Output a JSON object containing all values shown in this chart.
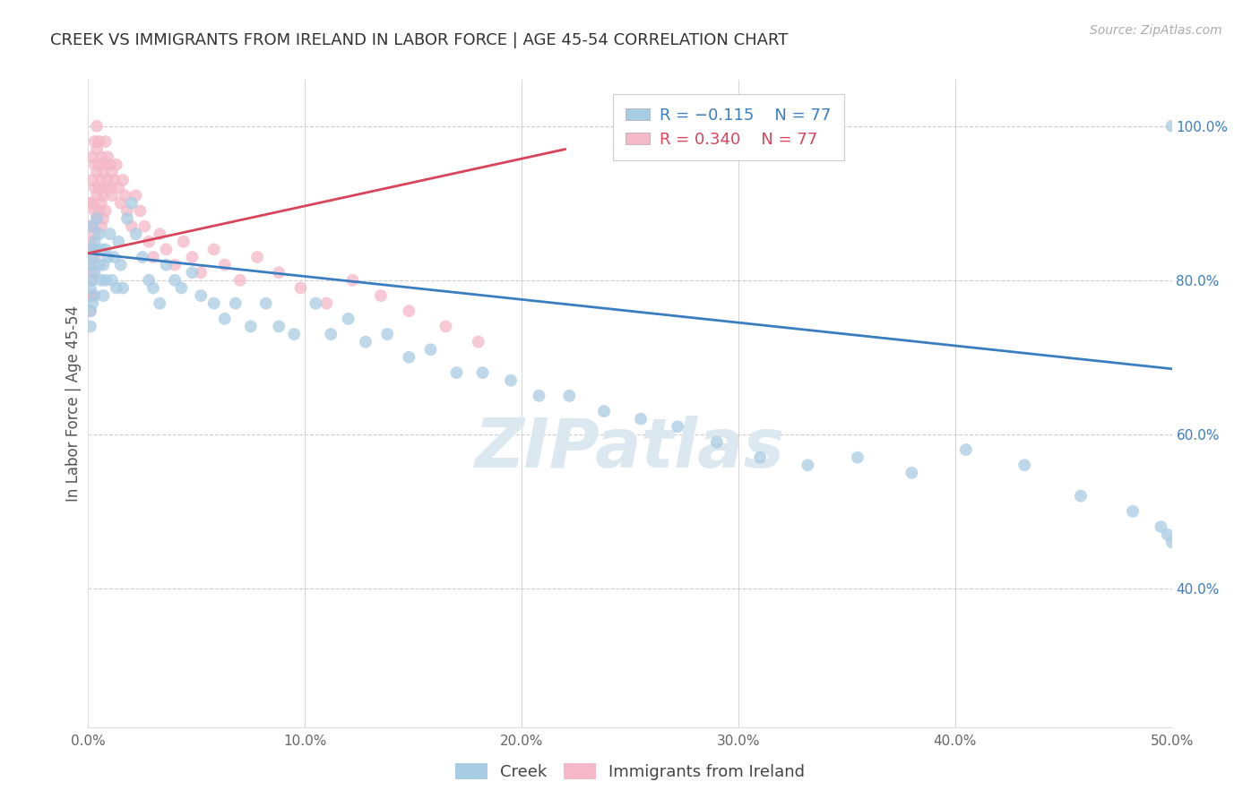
{
  "title": "CREEK VS IMMIGRANTS FROM IRELAND IN LABOR FORCE | AGE 45-54 CORRELATION CHART",
  "source": "Source: ZipAtlas.com",
  "ylabel": "In Labor Force | Age 45-54",
  "xlim": [
    0.0,
    0.5
  ],
  "ylim": [
    0.22,
    1.06
  ],
  "ytick_positions": [
    0.4,
    0.6,
    0.8,
    1.0
  ],
  "ytick_labels": [
    "40.0%",
    "60.0%",
    "80.0%",
    "100.0%"
  ],
  "xtick_positions": [
    0.0,
    0.1,
    0.2,
    0.3,
    0.4,
    0.5
  ],
  "xtick_labels": [
    "0.0%",
    "10.0%",
    "20.0%",
    "30.0%",
    "40.0%",
    "50.0%"
  ],
  "blue_color": "#a8cce4",
  "pink_color": "#f4b8c8",
  "blue_line_color": "#3a7ebf",
  "pink_line_color": "#d9445a",
  "watermark": "ZIPatlas",
  "background_color": "#ffffff",
  "grid_color": "#cccccc",
  "creek_x": [
    0.001,
    0.001,
    0.001,
    0.001,
    0.001,
    0.002,
    0.002,
    0.002,
    0.002,
    0.003,
    0.003,
    0.003,
    0.004,
    0.004,
    0.005,
    0.005,
    0.006,
    0.006,
    0.007,
    0.007,
    0.008,
    0.008,
    0.009,
    0.01,
    0.011,
    0.012,
    0.013,
    0.014,
    0.015,
    0.016,
    0.018,
    0.02,
    0.022,
    0.025,
    0.028,
    0.03,
    0.033,
    0.036,
    0.04,
    0.043,
    0.048,
    0.052,
    0.058,
    0.063,
    0.068,
    0.075,
    0.082,
    0.088,
    0.095,
    0.105,
    0.112,
    0.12,
    0.128,
    0.138,
    0.148,
    0.158,
    0.17,
    0.182,
    0.195,
    0.208,
    0.222,
    0.238,
    0.255,
    0.272,
    0.29,
    0.31,
    0.332,
    0.355,
    0.38,
    0.405,
    0.432,
    0.458,
    0.482,
    0.495,
    0.498,
    0.5,
    0.5
  ],
  "creek_y": [
    0.84,
    0.82,
    0.79,
    0.76,
    0.74,
    0.87,
    0.83,
    0.8,
    0.77,
    0.85,
    0.81,
    0.78,
    0.88,
    0.84,
    0.86,
    0.82,
    0.84,
    0.8,
    0.82,
    0.78,
    0.84,
    0.8,
    0.83,
    0.86,
    0.8,
    0.83,
    0.79,
    0.85,
    0.82,
    0.79,
    0.88,
    0.9,
    0.86,
    0.83,
    0.8,
    0.79,
    0.77,
    0.82,
    0.8,
    0.79,
    0.81,
    0.78,
    0.77,
    0.75,
    0.77,
    0.74,
    0.77,
    0.74,
    0.73,
    0.77,
    0.73,
    0.75,
    0.72,
    0.73,
    0.7,
    0.71,
    0.68,
    0.68,
    0.67,
    0.65,
    0.65,
    0.63,
    0.62,
    0.61,
    0.59,
    0.57,
    0.56,
    0.57,
    0.55,
    0.58,
    0.56,
    0.52,
    0.5,
    0.48,
    0.47,
    0.46,
    1.0
  ],
  "ireland_x": [
    0.001,
    0.001,
    0.001,
    0.001,
    0.001,
    0.001,
    0.001,
    0.002,
    0.002,
    0.002,
    0.002,
    0.002,
    0.002,
    0.002,
    0.003,
    0.003,
    0.003,
    0.003,
    0.003,
    0.003,
    0.004,
    0.004,
    0.004,
    0.004,
    0.004,
    0.005,
    0.005,
    0.005,
    0.005,
    0.006,
    0.006,
    0.006,
    0.006,
    0.007,
    0.007,
    0.007,
    0.008,
    0.008,
    0.008,
    0.008,
    0.009,
    0.009,
    0.01,
    0.01,
    0.011,
    0.011,
    0.012,
    0.013,
    0.014,
    0.015,
    0.016,
    0.017,
    0.018,
    0.02,
    0.022,
    0.024,
    0.026,
    0.028,
    0.03,
    0.033,
    0.036,
    0.04,
    0.044,
    0.048,
    0.052,
    0.058,
    0.063,
    0.07,
    0.078,
    0.088,
    0.098,
    0.11,
    0.122,
    0.135,
    0.148,
    0.165,
    0.18
  ],
  "ireland_y": [
    0.9,
    0.87,
    0.85,
    0.82,
    0.8,
    0.78,
    0.76,
    0.96,
    0.93,
    0.9,
    0.87,
    0.84,
    0.81,
    0.78,
    0.98,
    0.95,
    0.92,
    0.89,
    0.86,
    0.83,
    1.0,
    0.97,
    0.94,
    0.91,
    0.88,
    0.98,
    0.95,
    0.92,
    0.89,
    0.96,
    0.93,
    0.9,
    0.87,
    0.94,
    0.91,
    0.88,
    0.98,
    0.95,
    0.92,
    0.89,
    0.96,
    0.93,
    0.95,
    0.92,
    0.94,
    0.91,
    0.93,
    0.95,
    0.92,
    0.9,
    0.93,
    0.91,
    0.89,
    0.87,
    0.91,
    0.89,
    0.87,
    0.85,
    0.83,
    0.86,
    0.84,
    0.82,
    0.85,
    0.83,
    0.81,
    0.84,
    0.82,
    0.8,
    0.83,
    0.81,
    0.79,
    0.77,
    0.8,
    0.78,
    0.76,
    0.74,
    0.72
  ]
}
